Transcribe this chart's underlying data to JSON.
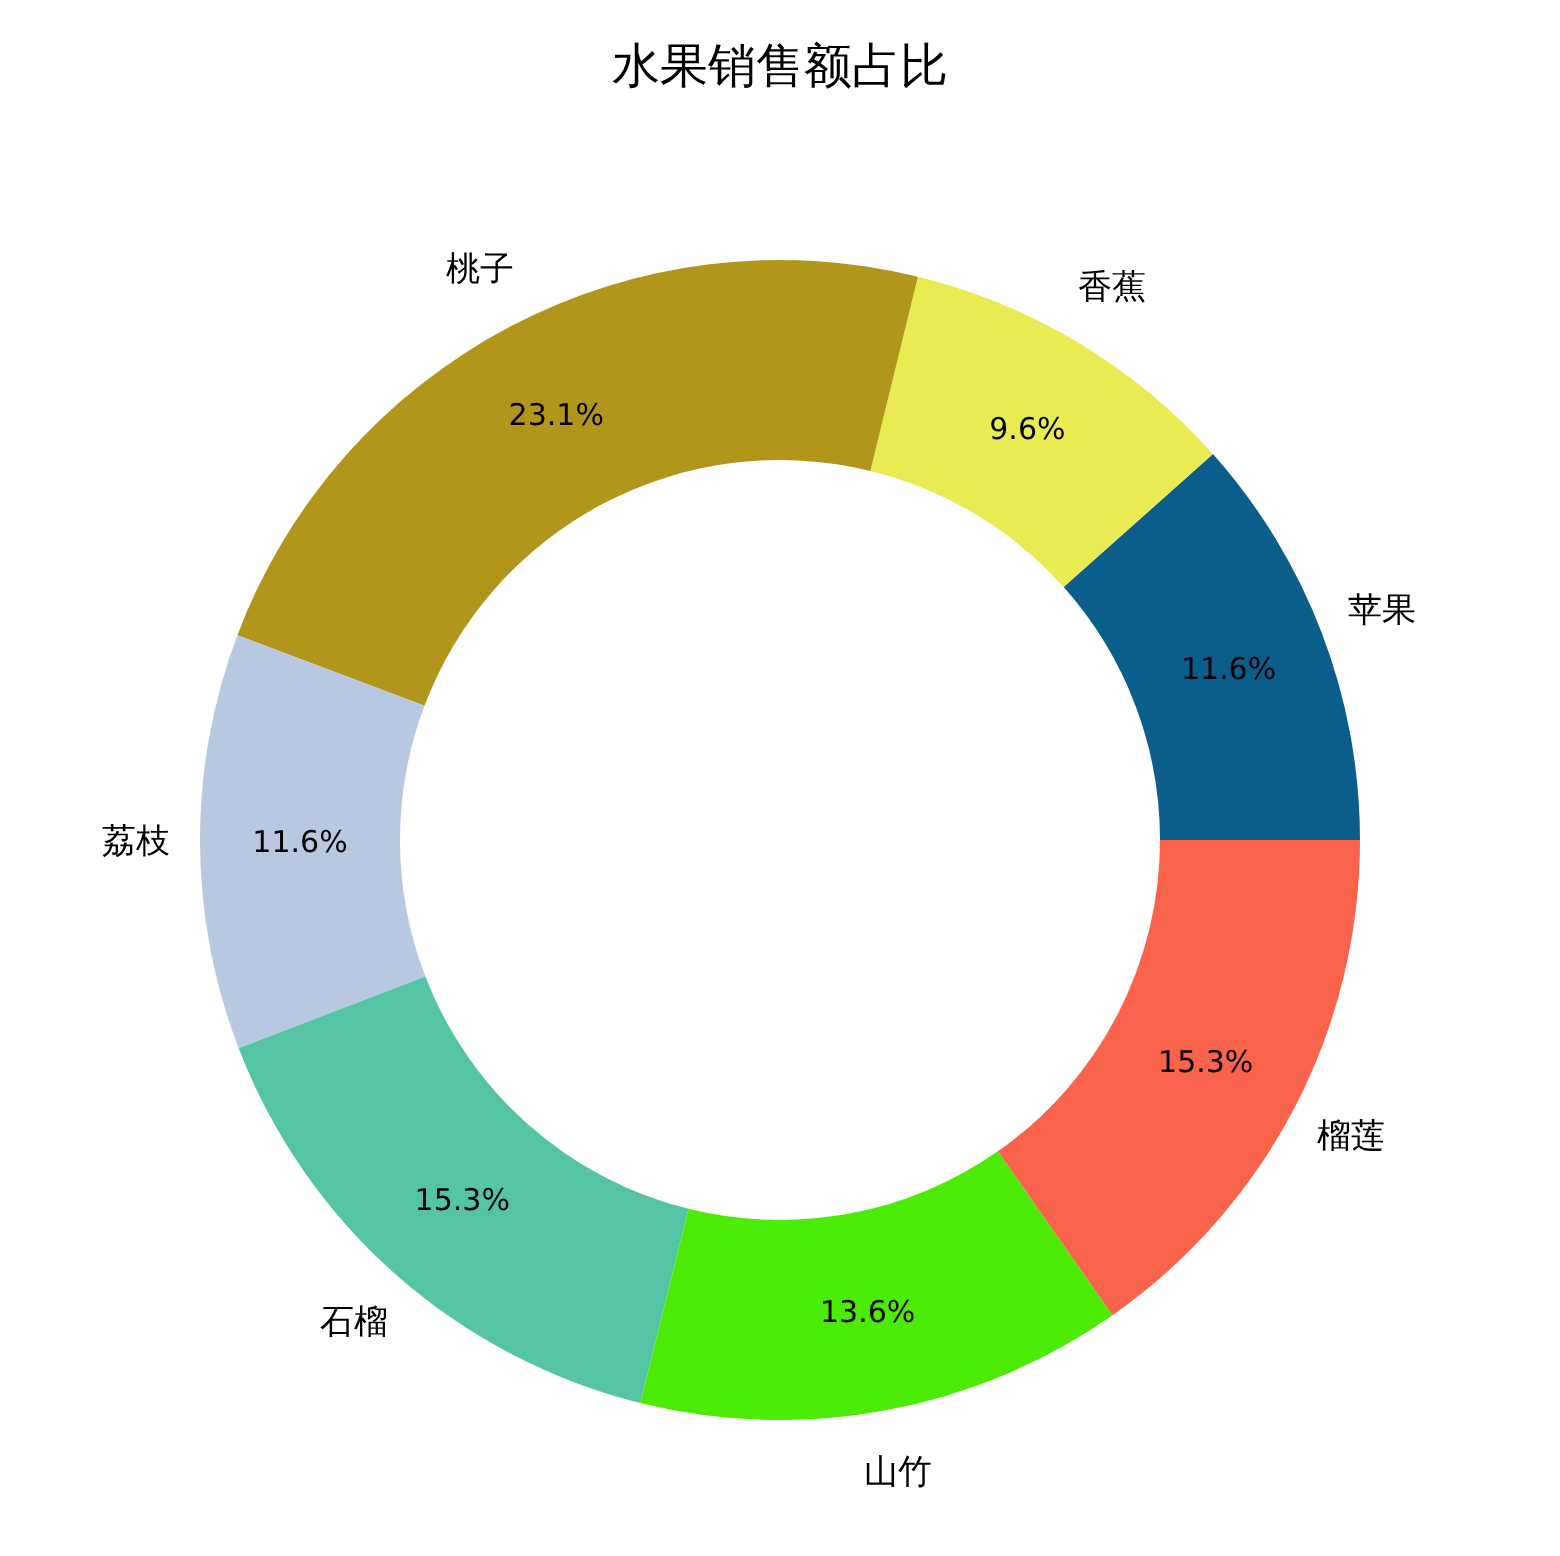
{
  "chart_data": {
    "type": "donut",
    "title": "水果销售额占比",
    "categories": [
      "苹果",
      "香蕉",
      "桃子",
      "荔枝",
      "石榴",
      "山竹",
      "榴莲"
    ],
    "values": [
      11.6,
      9.6,
      23.1,
      11.6,
      15.3,
      13.6,
      15.3
    ],
    "colors": [
      "#0b5e8c",
      "#e8ec52",
      "#b2961c",
      "#b7c8e0",
      "#55c4a4",
      "#4ceb06",
      "#f9624b"
    ],
    "value_labels": [
      "11.6%",
      "9.6%",
      "23.1%",
      "11.6%",
      "15.3%",
      "13.6%",
      "15.3%"
    ],
    "legend": false
  }
}
